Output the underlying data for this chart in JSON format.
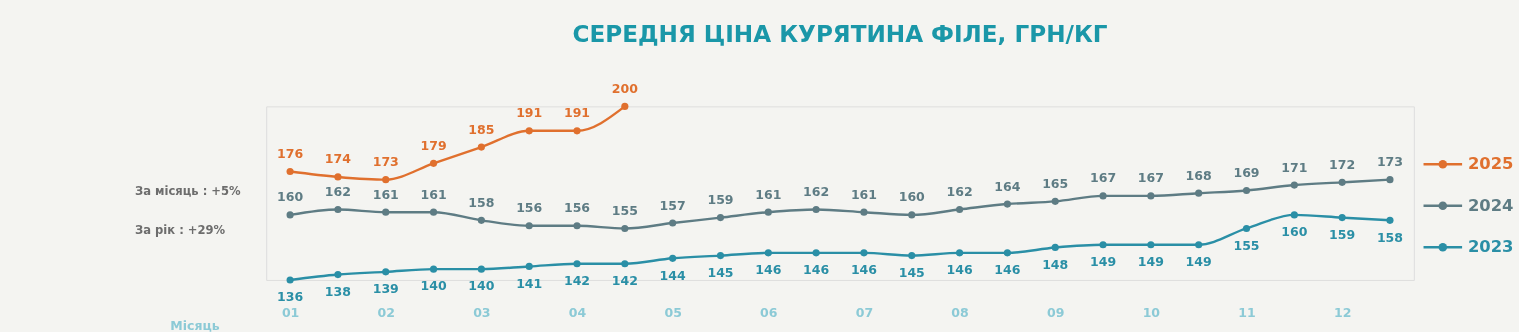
{
  "chart_data": {
    "type": "line",
    "title": "СЕРЕДНЯ ЦІНА КУРЯТИНА ФІЛЕ, ГРН/КГ",
    "xlabel": "Місяць",
    "categories": [
      "01",
      null,
      "02",
      null,
      "03",
      null,
      "04",
      null,
      "05",
      null,
      "06",
      null,
      "07",
      null,
      "08",
      null,
      "09",
      null,
      "10",
      null,
      "11",
      null,
      "12",
      null
    ],
    "series": [
      {
        "name": "2025",
        "color": "#e0702e",
        "values": [
          176,
          174,
          173,
          179,
          185,
          191,
          191,
          200,
          null,
          null,
          null,
          null,
          null,
          null,
          null,
          null,
          null,
          null,
          null,
          null,
          null,
          null,
          null,
          null
        ]
      },
      {
        "name": "2024",
        "color": "#5e7c84",
        "values": [
          160,
          162,
          161,
          161,
          158,
          156,
          156,
          155,
          157,
          159,
          161,
          162,
          161,
          160,
          162,
          164,
          165,
          167,
          167,
          168,
          169,
          171,
          172,
          173
        ]
      },
      {
        "name": "2023",
        "color": "#2a8fa6",
        "values": [
          136,
          138,
          139,
          140,
          140,
          141,
          142,
          142,
          144,
          145,
          146,
          146,
          146,
          145,
          146,
          146,
          148,
          149,
          149,
          149,
          155,
          160,
          159,
          158
        ]
      }
    ],
    "annotations": [
      "За місяць : +5%",
      "За рік : +29%"
    ],
    "data_labels": true,
    "marker": "circle",
    "line_style": "solid",
    "legend": "right",
    "grid": false
  }
}
